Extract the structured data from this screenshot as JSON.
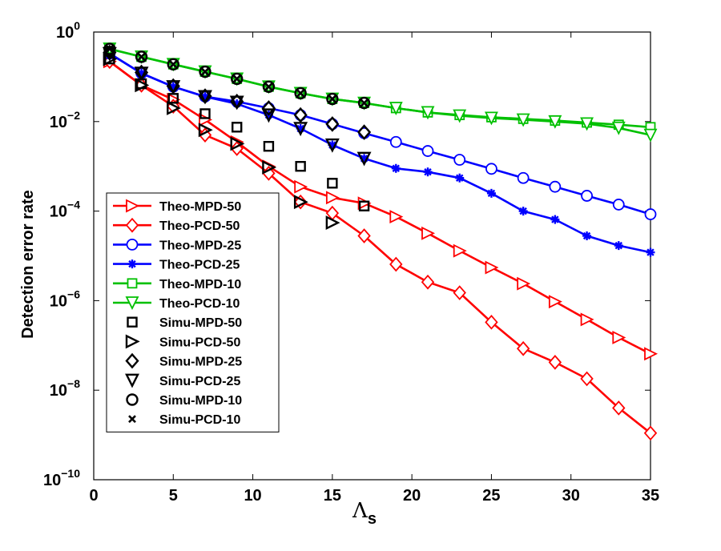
{
  "chart_data": {
    "type": "line",
    "yscale": "log",
    "title": "",
    "xlabel_symbol": "Λ",
    "xlabel_subscript": "s",
    "ylabel": "Detection error rate",
    "xlim": [
      0,
      35
    ],
    "ylim": [
      1e-10,
      1
    ],
    "x_ticks": [
      0,
      5,
      10,
      15,
      20,
      25,
      30,
      35
    ],
    "x_tick_labels": [
      "0",
      "5",
      "10",
      "15",
      "20",
      "25",
      "30",
      "35"
    ],
    "y_ticks": [
      1e-10,
      1e-08,
      1e-06,
      0.0001,
      0.01,
      1
    ],
    "y_tick_labels": [
      {
        "base": "10",
        "exp": "−10"
      },
      {
        "base": "10",
        "exp": "−8"
      },
      {
        "base": "10",
        "exp": "−6"
      },
      {
        "base": "10",
        "exp": "−4"
      },
      {
        "base": "10",
        "exp": "−2"
      },
      {
        "base": "10",
        "exp": "0"
      }
    ],
    "legend_position": "lower-left",
    "series": [
      {
        "name": "Theo-MPD-50",
        "kind": "theory",
        "color": "#ff0000",
        "marker": "triangle-right",
        "x": [
          1,
          3,
          5,
          7,
          9,
          11,
          13,
          15,
          17,
          19,
          21,
          23,
          25,
          27,
          29,
          31,
          33,
          35
        ],
        "y": [
          0.22,
          0.065,
          0.031,
          0.011,
          0.0035,
          0.001,
          0.00035,
          0.0002,
          0.00015,
          7.5e-05,
          3.2e-05,
          1.3e-05,
          5.5e-06,
          2.4e-06,
          9.5e-07,
          3.8e-07,
          1.5e-07,
          6.5e-08
        ]
      },
      {
        "name": "Theo-PCD-50",
        "kind": "theory",
        "color": "#ff0000",
        "marker": "diamond",
        "x": [
          1,
          3,
          5,
          7,
          9,
          11,
          13,
          15,
          17,
          19,
          21,
          23,
          25,
          27,
          29,
          31,
          33,
          35
        ],
        "y": [
          0.22,
          0.065,
          0.022,
          0.005,
          0.0025,
          0.0007,
          0.00016,
          9e-05,
          2.8e-05,
          6.5e-06,
          2.6e-06,
          1.5e-06,
          3.3e-07,
          8.5e-08,
          4.2e-08,
          1.8e-08,
          4e-09,
          1.1e-09
        ]
      },
      {
        "name": "Theo-MPD-25",
        "kind": "theory",
        "color": "#0000ff",
        "marker": "circle",
        "x": [
          1,
          3,
          5,
          7,
          9,
          11,
          13,
          15,
          17,
          19,
          21,
          23,
          25,
          27,
          29,
          31,
          33,
          35
        ],
        "y": [
          0.33,
          0.12,
          0.06,
          0.036,
          0.028,
          0.02,
          0.014,
          0.0088,
          0.0055,
          0.0035,
          0.0022,
          0.0014,
          0.00088,
          0.00055,
          0.00035,
          0.00022,
          0.00014,
          8.5e-05
        ]
      },
      {
        "name": "Theo-PCD-25",
        "kind": "theory",
        "color": "#0000ff",
        "marker": "asterisk",
        "x": [
          1,
          3,
          5,
          7,
          9,
          11,
          13,
          15,
          17,
          19,
          21,
          23,
          25,
          27,
          29,
          31,
          33,
          35
        ],
        "y": [
          0.33,
          0.12,
          0.06,
          0.036,
          0.025,
          0.014,
          0.007,
          0.003,
          0.0015,
          0.0009,
          0.00075,
          0.00055,
          0.00025,
          0.0001,
          6.5e-05,
          2.8e-05,
          1.7e-05,
          1.2e-05
        ]
      },
      {
        "name": "Theo-MPD-10",
        "kind": "theory",
        "color": "#00c000",
        "marker": "square",
        "x": [
          1,
          3,
          5,
          7,
          9,
          11,
          13,
          15,
          17,
          19,
          21,
          23,
          25,
          27,
          29,
          31,
          33,
          35
        ],
        "y": [
          0.42,
          0.28,
          0.19,
          0.13,
          0.09,
          0.06,
          0.043,
          0.032,
          0.026,
          0.02,
          0.016,
          0.014,
          0.0125,
          0.0115,
          0.0105,
          0.0095,
          0.0085,
          0.0075
        ]
      },
      {
        "name": "Theo-PCD-10",
        "kind": "theory",
        "color": "#00c000",
        "marker": "triangle-down",
        "x": [
          1,
          3,
          5,
          7,
          9,
          11,
          13,
          15,
          17,
          19,
          21,
          23,
          25,
          27,
          29,
          31,
          33,
          35
        ],
        "y": [
          0.42,
          0.28,
          0.19,
          0.13,
          0.09,
          0.06,
          0.043,
          0.032,
          0.026,
          0.02,
          0.016,
          0.0135,
          0.012,
          0.011,
          0.01,
          0.009,
          0.0072,
          0.005
        ]
      },
      {
        "name": "Simu-MPD-50",
        "kind": "sim",
        "color": "#000000",
        "marker": "square",
        "x": [
          1,
          3,
          5,
          7,
          9,
          11,
          13,
          15,
          17
        ],
        "y": [
          0.25,
          0.07,
          0.033,
          0.015,
          0.0075,
          0.0028,
          0.001,
          0.00042,
          0.00013
        ]
      },
      {
        "name": "Simu-PCD-50",
        "kind": "sim",
        "color": "#000000",
        "marker": "triangle-right",
        "x": [
          1,
          3,
          5,
          7,
          9,
          11,
          13,
          15
        ],
        "y": [
          0.25,
          0.065,
          0.02,
          0.0065,
          0.0032,
          0.00095,
          0.00016,
          5.5e-05
        ]
      },
      {
        "name": "Simu-MPD-25",
        "kind": "sim",
        "color": "#000000",
        "marker": "diamond",
        "x": [
          1,
          3,
          5,
          7,
          9,
          11,
          13,
          15,
          17
        ],
        "y": [
          0.35,
          0.125,
          0.062,
          0.037,
          0.028,
          0.02,
          0.014,
          0.0088,
          0.0058
        ]
      },
      {
        "name": "Simu-PCD-25",
        "kind": "sim",
        "color": "#000000",
        "marker": "triangle-down",
        "x": [
          1,
          3,
          5,
          7,
          9,
          11,
          13,
          15,
          17
        ],
        "y": [
          0.33,
          0.12,
          0.06,
          0.036,
          0.027,
          0.014,
          0.007,
          0.003,
          0.0015
        ]
      },
      {
        "name": "Simu-MPD-10",
        "kind": "sim",
        "color": "#000000",
        "marker": "circle",
        "x": [
          1,
          3,
          5,
          7,
          9,
          11,
          13,
          15,
          17
        ],
        "y": [
          0.42,
          0.28,
          0.19,
          0.13,
          0.09,
          0.06,
          0.043,
          0.032,
          0.026
        ]
      },
      {
        "name": "Simu-PCD-10",
        "kind": "sim",
        "color": "#000000",
        "marker": "x",
        "x": [
          1,
          3,
          5,
          7,
          9,
          11,
          13,
          15,
          17
        ],
        "y": [
          0.42,
          0.28,
          0.19,
          0.13,
          0.09,
          0.06,
          0.043,
          0.032,
          0.026
        ]
      }
    ]
  }
}
